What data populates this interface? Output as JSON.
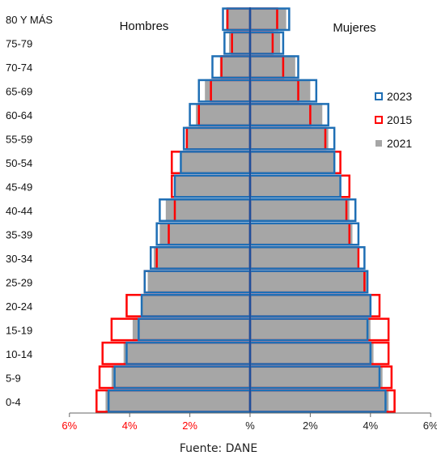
{
  "chart_data": {
    "type": "bar",
    "subtype": "population-pyramid",
    "categories": [
      "0-4",
      "5-9",
      "10-14",
      "15-19",
      "20-24",
      "25-29",
      "30-34",
      "35-39",
      "40-44",
      "45-49",
      "50-54",
      "55-59",
      "60-64",
      "65-69",
      "70-74",
      "75-79",
      "80 Y MÁS"
    ],
    "left_label": "Hombres",
    "right_label": "Mujeres",
    "series": [
      {
        "name": "2021",
        "style": "filled",
        "color": "#a6a6a6",
        "men": [
          4.8,
          4.6,
          4.2,
          3.9,
          3.6,
          3.4,
          3.2,
          3.0,
          2.8,
          2.5,
          2.3,
          2.1,
          1.8,
          1.5,
          1.0,
          0.7,
          0.8
        ],
        "women": [
          4.6,
          4.4,
          4.1,
          4.0,
          4.0,
          3.9,
          3.6,
          3.4,
          3.3,
          3.0,
          2.8,
          2.6,
          2.4,
          2.0,
          1.5,
          1.0,
          1.2
        ]
      },
      {
        "name": "2015",
        "style": "outline",
        "color": "#ff0000",
        "men": [
          5.1,
          5.0,
          4.9,
          4.6,
          4.1,
          3.5,
          3.1,
          2.7,
          2.5,
          2.6,
          2.6,
          2.1,
          1.7,
          1.3,
          0.95,
          0.6,
          0.75
        ],
        "women": [
          4.8,
          4.7,
          4.6,
          4.6,
          4.3,
          3.8,
          3.6,
          3.3,
          3.2,
          3.3,
          3.0,
          2.5,
          2.0,
          1.6,
          1.1,
          0.75,
          0.9
        ]
      },
      {
        "name": "2023",
        "style": "outline",
        "color": "#1f6fb5",
        "men": [
          4.7,
          4.5,
          4.1,
          3.7,
          3.6,
          3.5,
          3.3,
          3.1,
          3.0,
          2.5,
          2.3,
          2.2,
          2.0,
          1.7,
          1.25,
          0.85,
          0.9
        ],
        "women": [
          4.5,
          4.3,
          4.0,
          3.9,
          4.0,
          3.9,
          3.8,
          3.6,
          3.5,
          3.0,
          2.8,
          2.8,
          2.6,
          2.2,
          1.6,
          1.1,
          1.3
        ]
      }
    ],
    "x_ticks": [
      {
        "label": "6%",
        "value": -6,
        "color": "#ff0000"
      },
      {
        "label": "4%",
        "value": -4,
        "color": "#ff0000"
      },
      {
        "label": "2%",
        "value": -2,
        "color": "#ff0000"
      },
      {
        "label": "%",
        "value": 0,
        "color": "#222222"
      },
      {
        "label": "2%",
        "value": 2,
        "color": "#222222"
      },
      {
        "label": "4%",
        "value": 4,
        "color": "#222222"
      },
      {
        "label": "6%",
        "value": 6,
        "color": "#222222"
      }
    ],
    "xlim": [
      -6,
      6
    ],
    "legend": {
      "position": "right",
      "order": [
        "2023",
        "2015",
        "2021"
      ]
    }
  },
  "caption": "Fuente: DANE"
}
